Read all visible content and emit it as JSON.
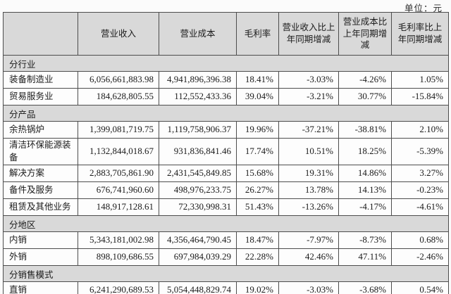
{
  "unit_label": "单位：元",
  "table": {
    "columns": [
      "",
      "营业收入",
      "营业成本",
      "毛利率",
      "营业收入比上年同期增减",
      "营业成本比上年同期增减",
      "毛利率比上年同期增减"
    ],
    "sections": [
      {
        "title": "分行业",
        "rows": [
          {
            "label": "装备制造业",
            "values": [
              "6,056,661,883.98",
              "4,941,896,396.38",
              "18.41%",
              "-3.03%",
              "-4.26%",
              "1.05%"
            ]
          },
          {
            "label": "贸易服务业",
            "values": [
              "184,628,805.55",
              "112,552,433.36",
              "39.04%",
              "-3.21%",
              "30.77%",
              "-15.84%"
            ]
          }
        ]
      },
      {
        "title": "分产品",
        "rows": [
          {
            "label": "余热锅炉",
            "values": [
              "1,399,081,719.75",
              "1,119,758,906.37",
              "19.96%",
              "-37.21%",
              "-38.81%",
              "2.10%"
            ]
          },
          {
            "label": "清洁环保能源装备",
            "values": [
              "1,132,844,018.67",
              "931,836,841.46",
              "17.74%",
              "10.51%",
              "18.25%",
              "-5.39%"
            ]
          },
          {
            "label": "解决方案",
            "values": [
              "2,883,705,861.90",
              "2,431,545,849.85",
              "15.68%",
              "19.31%",
              "14.86%",
              "3.27%"
            ]
          },
          {
            "label": "备件及服务",
            "values": [
              "676,741,960.60",
              "498,976,233.75",
              "26.27%",
              "13.78%",
              "14.13%",
              "-0.23%"
            ]
          },
          {
            "label": "租赁及其他业务",
            "values": [
              "148,917,128.61",
              "72,330,998.31",
              "51.43%",
              "-13.26%",
              "-4.17%",
              "-4.61%"
            ]
          }
        ]
      },
      {
        "title": "分地区",
        "rows": [
          {
            "label": "内销",
            "values": [
              "5,343,181,002.98",
              "4,356,464,790.45",
              "18.47%",
              "-7.97%",
              "-8.73%",
              "0.68%"
            ]
          },
          {
            "label": "外销",
            "values": [
              "898,109,686.55",
              "697,984,039.29",
              "22.28%",
              "42.46%",
              "47.11%",
              "-2.46%"
            ]
          }
        ]
      },
      {
        "title": "分销售模式",
        "rows": [
          {
            "label": "直销",
            "values": [
              "6,241,290,689.53",
              "5,054,448,829.74",
              "19.02%",
              "-3.03%",
              "-3.68%",
              "0.54%"
            ]
          }
        ]
      }
    ]
  }
}
